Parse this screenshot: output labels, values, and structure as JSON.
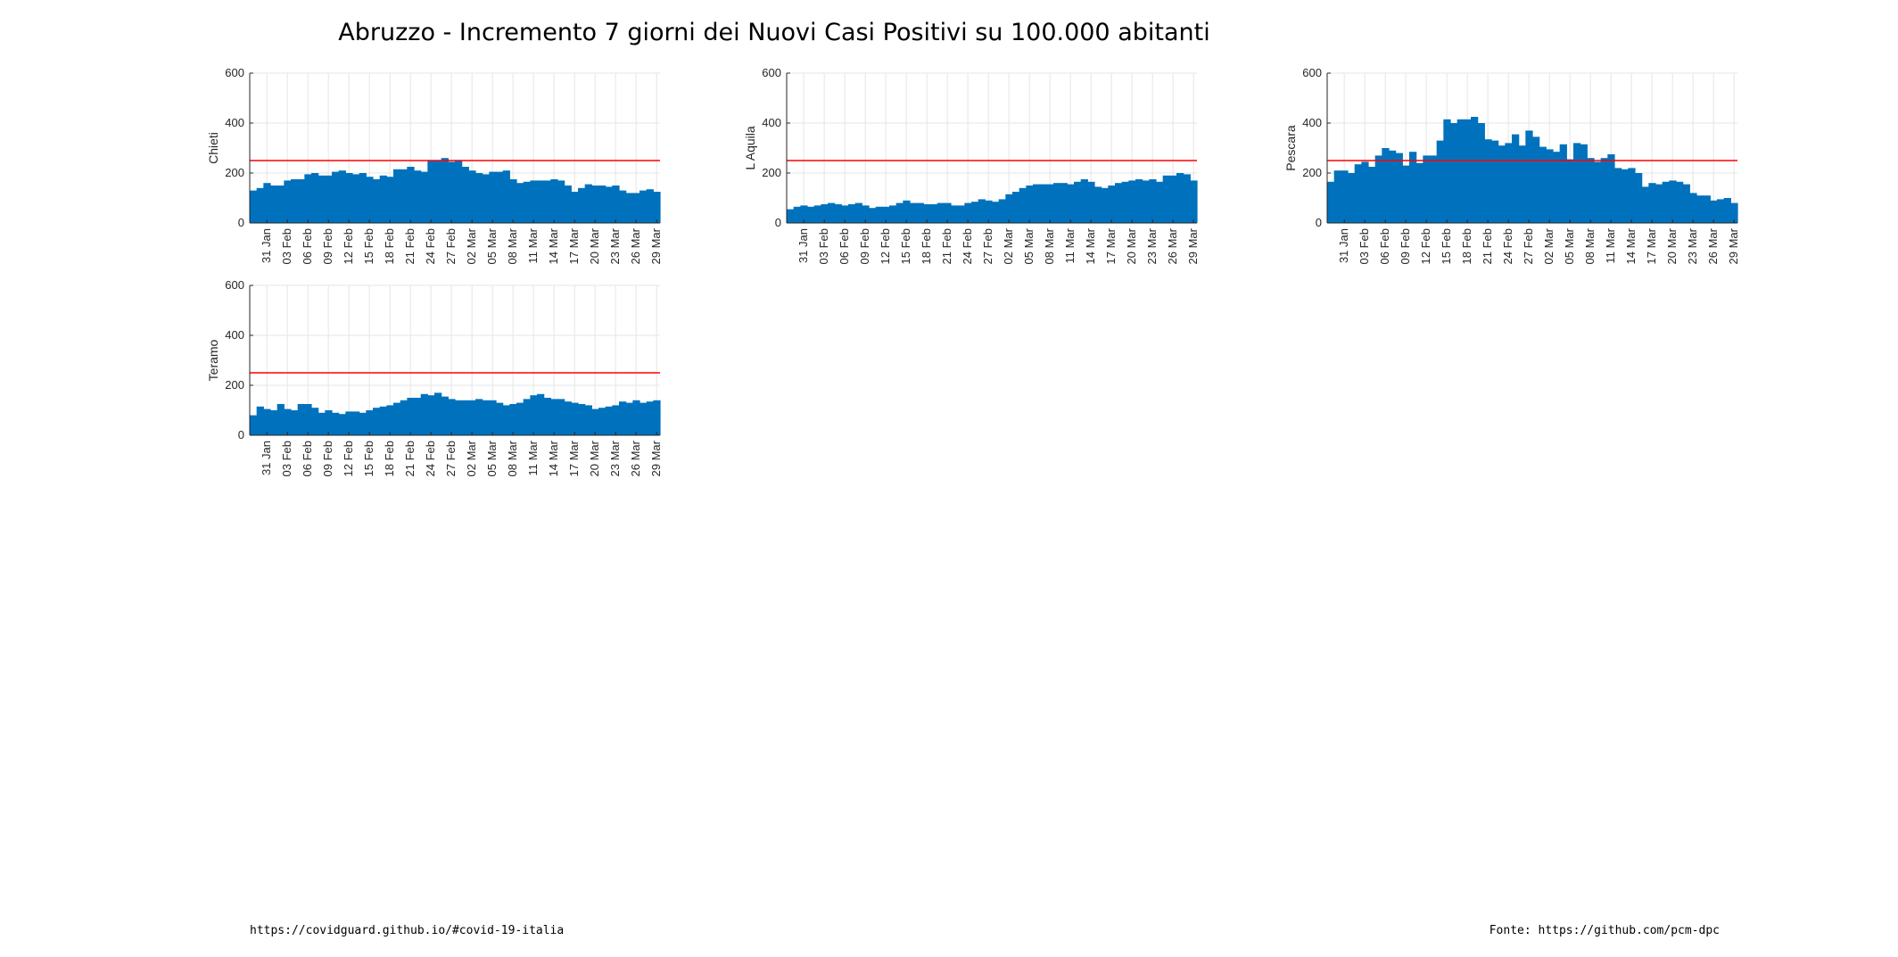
{
  "figure": {
    "title": "Abruzzo - Incremento 7 giorni dei Nuovi Casi Positivi su 100.000 abitanti",
    "footer_left": "https://covidguard.github.io/#covid-19-italia",
    "footer_right": "Fonte: https://github.com/pcm-dpc"
  },
  "colors": {
    "bar": "#0072BD",
    "threshold": "#FF0000",
    "grid": "#E6E6E6",
    "axis": "#262626"
  },
  "chart_data": [
    {
      "type": "bar",
      "ylabel": "Chieti",
      "ylim": [
        0,
        600
      ],
      "yticks": [
        0,
        200,
        400,
        600
      ],
      "threshold": 250,
      "x_start": "29 Jan",
      "xticks": [
        "31 Jan",
        "03 Feb",
        "06 Feb",
        "09 Feb",
        "12 Feb",
        "15 Feb",
        "18 Feb",
        "21 Feb",
        "24 Feb",
        "27 Feb",
        "02 Mar",
        "05 Mar",
        "08 Mar",
        "11 Mar",
        "14 Mar",
        "17 Mar",
        "20 Mar",
        "23 Mar",
        "26 Mar",
        "29 Mar"
      ],
      "grid": true,
      "values": [
        130,
        140,
        160,
        150,
        150,
        170,
        175,
        175,
        195,
        200,
        190,
        190,
        205,
        210,
        200,
        195,
        200,
        185,
        175,
        190,
        185,
        215,
        215,
        225,
        210,
        205,
        250,
        250,
        260,
        245,
        250,
        225,
        210,
        200,
        195,
        205,
        205,
        210,
        175,
        160,
        165,
        170,
        170,
        170,
        175,
        170,
        150,
        125,
        140,
        155,
        150,
        150,
        145,
        150,
        130,
        120,
        120,
        130,
        135,
        125
      ]
    },
    {
      "type": "bar",
      "ylabel": "L Aquila",
      "ylim": [
        0,
        600
      ],
      "yticks": [
        0,
        200,
        400,
        600
      ],
      "threshold": 250,
      "x_start": "29 Jan",
      "xticks": [
        "31 Jan",
        "03 Feb",
        "06 Feb",
        "09 Feb",
        "12 Feb",
        "15 Feb",
        "18 Feb",
        "21 Feb",
        "24 Feb",
        "27 Feb",
        "02 Mar",
        "05 Mar",
        "08 Mar",
        "11 Mar",
        "14 Mar",
        "17 Mar",
        "20 Mar",
        "23 Mar",
        "26 Mar",
        "29 Mar"
      ],
      "grid": true,
      "values": [
        55,
        65,
        70,
        65,
        70,
        75,
        80,
        75,
        70,
        75,
        80,
        70,
        60,
        65,
        65,
        70,
        80,
        90,
        80,
        80,
        75,
        75,
        80,
        80,
        70,
        70,
        80,
        85,
        95,
        90,
        85,
        95,
        115,
        125,
        140,
        150,
        155,
        155,
        155,
        160,
        160,
        155,
        165,
        175,
        165,
        145,
        140,
        150,
        160,
        165,
        170,
        175,
        170,
        175,
        165,
        190,
        190,
        200,
        195,
        170
      ]
    },
    {
      "type": "bar",
      "ylabel": "Pescara",
      "ylim": [
        0,
        600
      ],
      "yticks": [
        0,
        200,
        400,
        600
      ],
      "threshold": 250,
      "x_start": "29 Jan",
      "xticks": [
        "31 Jan",
        "03 Feb",
        "06 Feb",
        "09 Feb",
        "12 Feb",
        "15 Feb",
        "18 Feb",
        "21 Feb",
        "24 Feb",
        "27 Feb",
        "02 Mar",
        "05 Mar",
        "08 Mar",
        "11 Mar",
        "14 Mar",
        "17 Mar",
        "20 Mar",
        "23 Mar",
        "26 Mar",
        "29 Mar"
      ],
      "grid": true,
      "values": [
        165,
        210,
        210,
        200,
        235,
        245,
        225,
        270,
        300,
        290,
        280,
        230,
        285,
        240,
        270,
        270,
        330,
        415,
        400,
        415,
        415,
        425,
        400,
        335,
        330,
        310,
        320,
        355,
        310,
        370,
        345,
        305,
        295,
        285,
        315,
        255,
        320,
        315,
        260,
        245,
        260,
        275,
        220,
        215,
        220,
        200,
        145,
        160,
        155,
        165,
        170,
        165,
        155,
        120,
        110,
        110,
        90,
        95,
        100,
        80
      ]
    },
    {
      "type": "bar",
      "ylabel": "Teramo",
      "ylim": [
        0,
        600
      ],
      "yticks": [
        0,
        200,
        400,
        600
      ],
      "threshold": 250,
      "x_start": "29 Jan",
      "xticks": [
        "31 Jan",
        "03 Feb",
        "06 Feb",
        "09 Feb",
        "12 Feb",
        "15 Feb",
        "18 Feb",
        "21 Feb",
        "24 Feb",
        "27 Feb",
        "02 Mar",
        "05 Mar",
        "08 Mar",
        "11 Mar",
        "14 Mar",
        "17 Mar",
        "20 Mar",
        "23 Mar",
        "26 Mar",
        "29 Mar"
      ],
      "grid": true,
      "values": [
        80,
        115,
        105,
        100,
        125,
        105,
        100,
        125,
        125,
        110,
        90,
        100,
        90,
        85,
        95,
        95,
        90,
        100,
        110,
        115,
        120,
        130,
        140,
        150,
        150,
        165,
        160,
        170,
        155,
        145,
        140,
        140,
        140,
        145,
        140,
        140,
        130,
        120,
        125,
        130,
        145,
        160,
        165,
        150,
        145,
        145,
        135,
        130,
        125,
        120,
        105,
        110,
        115,
        120,
        135,
        130,
        140,
        130,
        135,
        140
      ]
    }
  ]
}
